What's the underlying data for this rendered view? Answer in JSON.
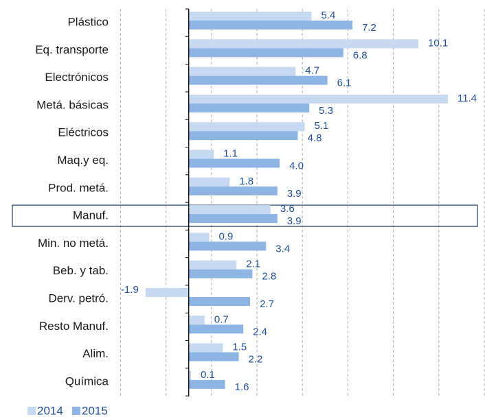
{
  "chart_data": {
    "type": "bar",
    "orientation": "horizontal",
    "categories": [
      "Plástico",
      "Eq. transporte",
      "Electrónicos",
      "Metá. básicas",
      "Eléctricos",
      "Maq.y eq.",
      "Prod. metá.",
      "Manuf.",
      "Min. no metá.",
      "Beb. y tab.",
      "Derv. petró.",
      "Resto Manuf.",
      "Alim.",
      "Química"
    ],
    "series": [
      {
        "name": "2014",
        "color": "#c6d9f1",
        "values": [
          5.4,
          10.1,
          4.7,
          11.4,
          5.1,
          1.1,
          1.8,
          3.6,
          0.9,
          2.1,
          -1.9,
          0.7,
          1.5,
          0.1
        ]
      },
      {
        "name": "2015",
        "color": "#8eb4e3",
        "values": [
          7.2,
          6.8,
          6.1,
          5.3,
          4.8,
          4.0,
          3.9,
          3.9,
          3.4,
          2.8,
          2.7,
          2.4,
          2.2,
          1.6
        ],
        "value_labels": [
          "7.2",
          "6.8",
          "6.1",
          "5.3",
          "4.8",
          "4.0",
          "3.9",
          "3.9",
          "3.4",
          "2.8",
          "2.7",
          "2.4",
          "2.2",
          "1.6"
        ]
      }
    ],
    "xlim": [
      -3,
      13
    ],
    "xticks": [
      -3,
      -1,
      1,
      3,
      5,
      7,
      9,
      11,
      13
    ],
    "grid": true,
    "highlight_index": 7,
    "legend": "bottom-left"
  }
}
